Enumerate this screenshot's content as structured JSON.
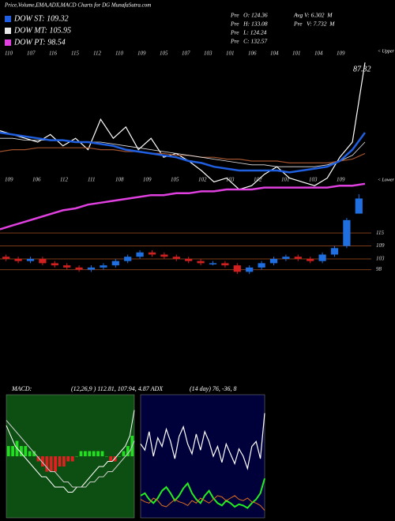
{
  "header": {
    "title": "Price,Volume,EMA,ADX,MACD Charts for DG MunafaSutra.com",
    "info": [
      "Pre   O: 124.36",
      "Pre   H: 133.08",
      "Pre   L: 124.24",
      "Pre   C: 132.57",
      "Avg V: 6.302  M",
      "Pre   V: 7.732  M"
    ]
  },
  "chart_data": [
    {
      "type": "line",
      "ylim": [
        0,
        100
      ],
      "top_labels": [
        "110",
        "107",
        "116",
        "115",
        "112",
        "110",
        "109",
        "105",
        "107",
        "103",
        "101",
        "106",
        "104",
        "101",
        "104",
        "109"
      ],
      "mid_labels": [
        "109",
        "106",
        "112",
        "111",
        "108",
        "109",
        "105",
        "102",
        "103",
        "102",
        "101",
        "103",
        "109"
      ],
      "annotations": [
        "87.32",
        "< Upper",
        "< Lower"
      ],
      "series": [
        {
          "color": "#ffffff",
          "width": 1.2,
          "values": [
            56,
            54,
            52,
            50,
            54,
            48,
            52,
            46,
            62,
            52,
            58,
            46,
            52,
            42,
            44,
            40,
            35,
            29,
            31,
            25,
            27,
            33,
            37,
            31,
            29,
            27,
            31,
            42,
            50,
            92
          ]
        },
        {
          "color": "#a0522d",
          "width": 1.2,
          "values": [
            45,
            46,
            46,
            47,
            47,
            47,
            47,
            47,
            46,
            46,
            45,
            45,
            44,
            44,
            43,
            43,
            42,
            42,
            41,
            41,
            40,
            40,
            40,
            39,
            39,
            39,
            39,
            40,
            41,
            44
          ]
        },
        {
          "name": "DOW MT: 105.95",
          "color": "#e8e8e8",
          "width": 0.8,
          "values": [
            52,
            52,
            51,
            51,
            51,
            51,
            50,
            50,
            50,
            49,
            48,
            47,
            46,
            45,
            44,
            43,
            42,
            41,
            40,
            39,
            38,
            38,
            37,
            37,
            37,
            37,
            38,
            40,
            43,
            50
          ]
        },
        {
          "name": "DOW ST: 109.32",
          "color": "#1f5fe0",
          "width": 2.5,
          "values": [
            55,
            54,
            53,
            52,
            51,
            51,
            50,
            50,
            49,
            48,
            46,
            45,
            44,
            43,
            42,
            40,
            39,
            37,
            36,
            35,
            35,
            35,
            35,
            34,
            35,
            36,
            37,
            40,
            46,
            55
          ]
        },
        {
          "name": "DOW PT: 98.54",
          "color": "#e040e0",
          "width": 2.5,
          "values": [
            4,
            6,
            8,
            10,
            12,
            14,
            15,
            17,
            18,
            19,
            20,
            21,
            22,
            22,
            23,
            23,
            24,
            24,
            25,
            25,
            25,
            26,
            26,
            26,
            26,
            26,
            26,
            27,
            27,
            28
          ]
        }
      ]
    },
    {
      "type": "candlestick",
      "ylim": [
        92,
        133
      ],
      "yticks": [
        98,
        103,
        109,
        115
      ],
      "level_color": "#7a3b1a",
      "up_color": "#1f6fe0",
      "down_color": "#d02020",
      "open": [
        104,
        103,
        102,
        103,
        101,
        100,
        99,
        98,
        99,
        100,
        102,
        104,
        106,
        105,
        104,
        103,
        102,
        101,
        101,
        100,
        97,
        99,
        101,
        103,
        104,
        103,
        102,
        105,
        109,
        124
      ],
      "high": [
        105,
        104,
        104,
        104,
        102,
        101,
        100,
        100,
        101,
        103,
        105,
        107,
        107,
        106,
        105,
        104,
        103,
        102,
        102,
        101,
        100,
        102,
        104,
        105,
        105,
        104,
        106,
        109,
        122,
        133
      ],
      "low": [
        102,
        101,
        101,
        100,
        99,
        98,
        97,
        97,
        98,
        99,
        101,
        103,
        104,
        103,
        102,
        101,
        100,
        100,
        99,
        96,
        96,
        98,
        100,
        102,
        102,
        101,
        101,
        104,
        108,
        124
      ],
      "close": [
        103,
        102,
        103,
        101,
        100,
        99,
        98,
        99,
        100,
        102,
        104,
        106,
        105,
        104,
        103,
        102,
        101,
        101,
        100,
        97,
        99,
        101,
        103,
        104,
        103,
        102,
        105,
        108,
        121,
        131
      ]
    },
    {
      "type": "macd",
      "title": "MACD:",
      "subtitle": "(12,26,9 ) 112.81, 107.94, 4.87 ADX",
      "ylim": [
        -12,
        12
      ],
      "background": "#0d4f12",
      "up_color": "#22dd22",
      "down_color": "#e02020",
      "histogram": [
        2,
        2,
        3,
        2,
        2,
        1,
        1,
        -1,
        -2,
        -3,
        -3,
        -3,
        -2,
        -2,
        -1,
        -1,
        0,
        1,
        1,
        1,
        1,
        1,
        1,
        0,
        -1,
        -1,
        0,
        1,
        2,
        4
      ],
      "series": [
        {
          "color": "#ffffff",
          "values": [
            6,
            4,
            2,
            1,
            0,
            -1,
            -2,
            -3,
            -4,
            -4,
            -5,
            -6,
            -6,
            -6,
            -7,
            -7,
            -6,
            -6,
            -5,
            -4,
            -3,
            -2,
            -2,
            -1,
            -1,
            0,
            1,
            2,
            4,
            9
          ]
        },
        {
          "color": "#cccccc",
          "values": [
            7,
            6,
            5,
            4,
            3,
            2,
            1,
            0,
            -1,
            -2,
            -3,
            -3,
            -4,
            -5,
            -5,
            -6,
            -6,
            -6,
            -6,
            -5,
            -5,
            -4,
            -4,
            -3,
            -3,
            -2,
            -1,
            0,
            1,
            3
          ]
        }
      ]
    },
    {
      "type": "line",
      "title": "(14 day) 76, -36, 8",
      "ylim": [
        0,
        100
      ],
      "background": "#00003a",
      "series": [
        {
          "color": "#ffffff",
          "width": 1.2,
          "values": [
            60,
            55,
            70,
            50,
            65,
            58,
            72,
            62,
            48,
            66,
            74,
            60,
            52,
            68,
            55,
            70,
            62,
            50,
            58,
            45,
            60,
            52,
            44,
            56,
            50,
            40,
            58,
            62,
            48,
            85
          ]
        },
        {
          "color": "#22ee22",
          "width": 2,
          "values": [
            18,
            20,
            15,
            12,
            16,
            22,
            25,
            20,
            14,
            18,
            24,
            28,
            20,
            15,
            12,
            18,
            22,
            16,
            12,
            10,
            14,
            12,
            9,
            11,
            10,
            8,
            12,
            15,
            20,
            32
          ]
        },
        {
          "color": "#e07020",
          "width": 1,
          "values": [
            15,
            13,
            12,
            16,
            14,
            10,
            9,
            12,
            15,
            13,
            12,
            10,
            14,
            12,
            16,
            14,
            12,
            15,
            18,
            17,
            14,
            16,
            18,
            15,
            14,
            16,
            13,
            12,
            10,
            6
          ]
        }
      ]
    }
  ]
}
